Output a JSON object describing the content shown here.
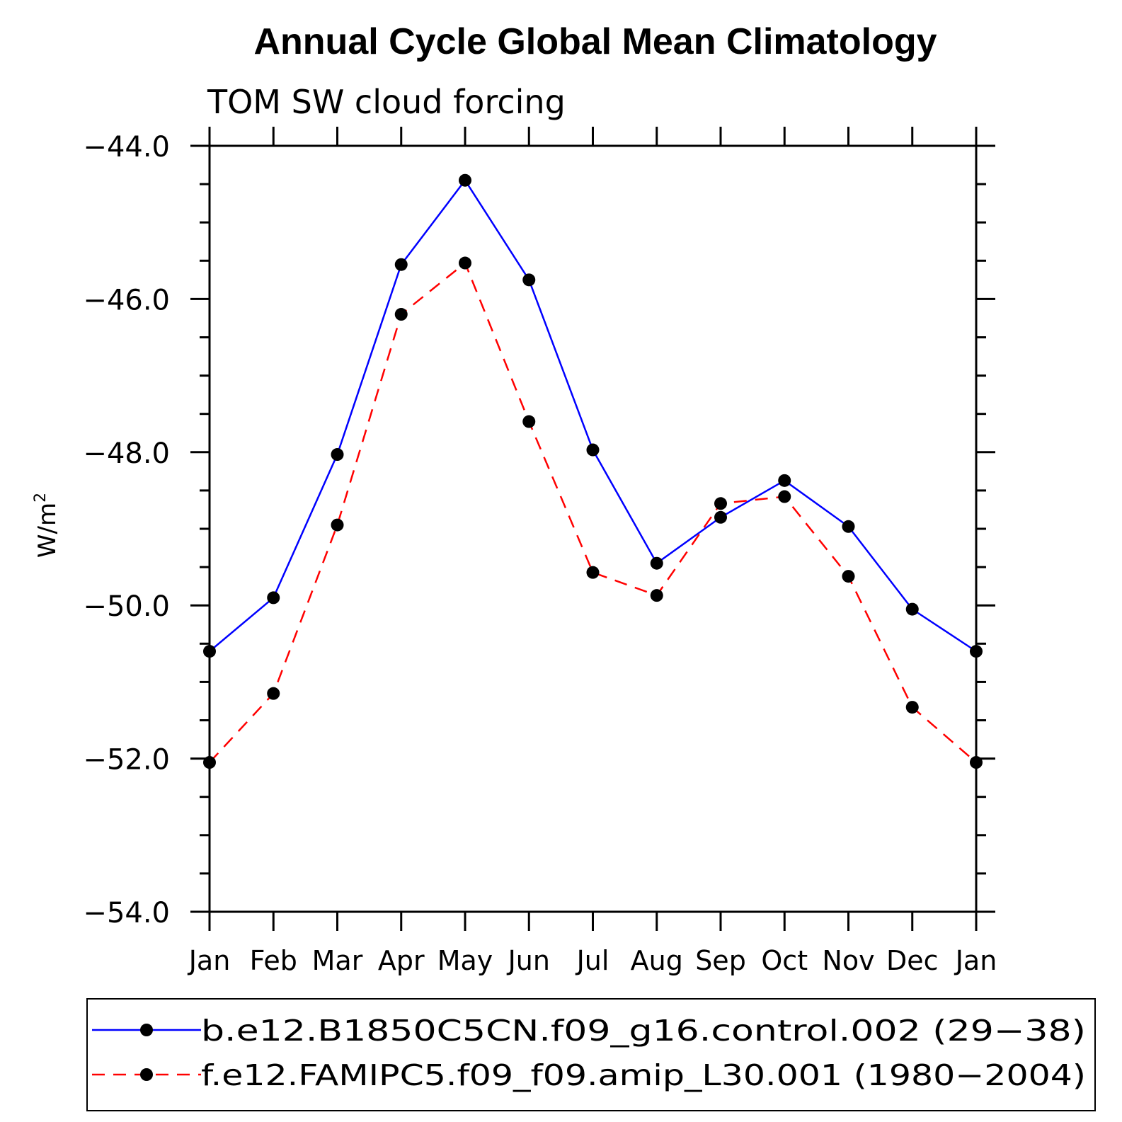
{
  "chart_data": {
    "type": "line",
    "title": "Annual Cycle Global Mean Climatology",
    "subtitle": "TOM SW cloud forcing",
    "ylabel": "W/m",
    "ylabel_sup": "2",
    "xlabel": "",
    "categories": [
      "Jan",
      "Feb",
      "Mar",
      "Apr",
      "May",
      "Jun",
      "Jul",
      "Aug",
      "Sep",
      "Oct",
      "Nov",
      "Dec",
      "Jan"
    ],
    "ylim": [
      -54.0,
      -44.0
    ],
    "yticks": [
      -44.0,
      -46.0,
      -48.0,
      -50.0,
      -52.0,
      -54.0
    ],
    "ytick_labels": [
      "−44.0",
      "−46.0",
      "−48.0",
      "−50.0",
      "−52.0",
      "−54.0"
    ],
    "series": [
      {
        "name": "b.e12.B1850C5CN.f09_g16.control.002 (29−38)",
        "color": "#0000ff",
        "dash": "solid",
        "values": [
          -50.6,
          -49.9,
          -48.03,
          -45.55,
          -44.45,
          -45.75,
          -47.97,
          -49.45,
          -48.85,
          -48.37,
          -48.97,
          -50.05,
          -50.6
        ]
      },
      {
        "name": "f.e12.FAMIPC5.f09_f09.amip_L30.001 (1980−2004)",
        "color": "#ff0000",
        "dash": "dashed",
        "values": [
          -52.05,
          -51.15,
          -48.95,
          -46.2,
          -45.53,
          -47.6,
          -49.57,
          -49.87,
          -48.67,
          -48.58,
          -49.62,
          -51.33,
          -52.05
        ]
      }
    ]
  }
}
